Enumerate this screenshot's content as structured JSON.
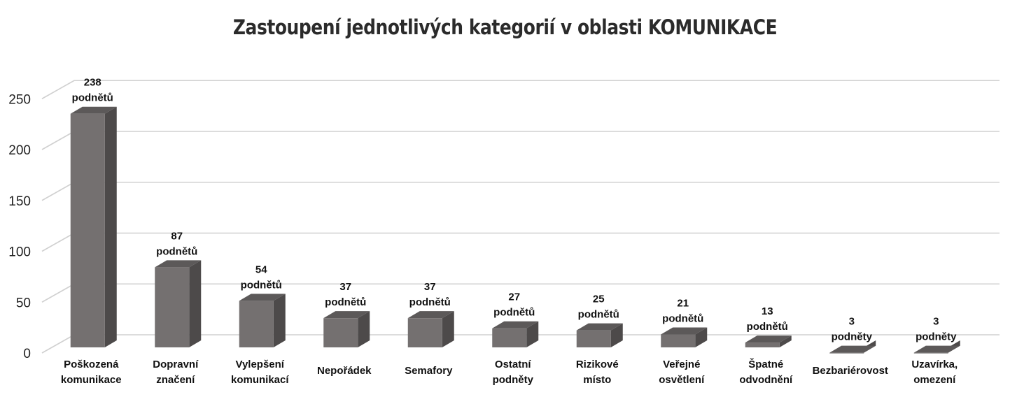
{
  "chart_data": {
    "type": "bar",
    "title": "Zastoupení jednotlivých kategorií v oblasti KOMUNIKACE",
    "xlabel": "",
    "ylabel": "",
    "ylim": [
      0,
      250
    ],
    "yticks": [
      "0",
      "50",
      "100",
      "150",
      "200",
      "250"
    ],
    "grid": true,
    "categories": [
      [
        "Poškozená",
        "komunikace"
      ],
      [
        "Dopravní",
        "značení"
      ],
      [
        "Vylepšení",
        "komunikací"
      ],
      [
        "Nepořádek"
      ],
      [
        "Semafory"
      ],
      [
        "Ostatní",
        "podněty"
      ],
      [
        "Rizikové",
        "místo"
      ],
      [
        "Veřejné",
        "osvětlení"
      ],
      [
        "Špatné",
        "odvodnění"
      ],
      [
        "Bezbariérovost"
      ],
      [
        "Uzavírka,",
        "omezení"
      ]
    ],
    "values": [
      238,
      87,
      54,
      37,
      37,
      27,
      25,
      21,
      13,
      3,
      3
    ],
    "data_labels": [
      [
        "238",
        "podnětů"
      ],
      [
        "87",
        "podnětů"
      ],
      [
        "54",
        "podnětů"
      ],
      [
        "37",
        "podnětů"
      ],
      [
        "37",
        "podnětů"
      ],
      [
        "27",
        "podnětů"
      ],
      [
        "25",
        "podnětů"
      ],
      [
        "21",
        "podnětů"
      ],
      [
        "13",
        "podnětů"
      ],
      [
        "3",
        "podněty"
      ],
      [
        "3",
        "podněty"
      ]
    ],
    "colors": {
      "bar_front": "#747070",
      "bar_side": "#4d4a4a",
      "bar_top": "#5c5959",
      "grid": "#d0d0d0"
    }
  }
}
